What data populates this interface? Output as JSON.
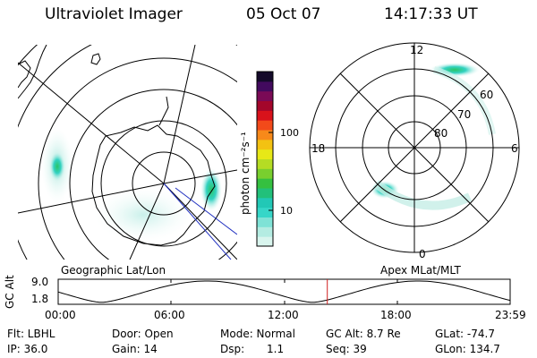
{
  "header": {
    "instrument": "Ultraviolet Imager",
    "date": "05 Oct 07",
    "time": "14:17:33 UT"
  },
  "colorbar": {
    "unit_label": "photon cm⁻²s⁻¹",
    "ticks": [
      {
        "label": "100",
        "value": 100
      },
      {
        "label": "10",
        "value": 10
      }
    ],
    "colors": [
      "#d9f5ee",
      "#b4ece2",
      "#7fe2d6",
      "#36d6c8",
      "#22c8b6",
      "#22c07a",
      "#35c040",
      "#79cf2e",
      "#b5dc24",
      "#e7e817",
      "#f3c212",
      "#f7891a",
      "#f24a1a",
      "#d9121b",
      "#a3062b",
      "#7a0a56",
      "#420a5e",
      "#140a2a"
    ]
  },
  "left_map": {
    "label": "Geographic Lat/Lon"
  },
  "right_map": {
    "label": "Apex MLat/MLT",
    "mlt_labels": {
      "top": "12",
      "left": "18",
      "right": "6",
      "bottom": "0"
    },
    "mlat_labels": [
      "60",
      "70",
      "80"
    ]
  },
  "altitude_plot": {
    "ylabel": "GC Alt",
    "y_ticks": [
      "9.0",
      "1.8"
    ],
    "ymax": 9.0,
    "ymin": 1.8,
    "x_ticks": [
      "00:00",
      "06:00",
      "12:00",
      "18:00",
      "23:59"
    ],
    "current_time_hours": 14.29
  },
  "info": {
    "filter": "Flt: LBHL",
    "door": "Door: Open",
    "mode": "Mode: Normal",
    "gc_alt": "GC Alt: 8.7 Re",
    "glat": "GLat: -74.7",
    "ip": "IP: 36.0",
    "gain": "Gain: 14",
    "dsp_label": "Dsp:",
    "dsp_value": "1.1",
    "seq": "Seq: 39",
    "glon": "GLon: 134.7"
  }
}
